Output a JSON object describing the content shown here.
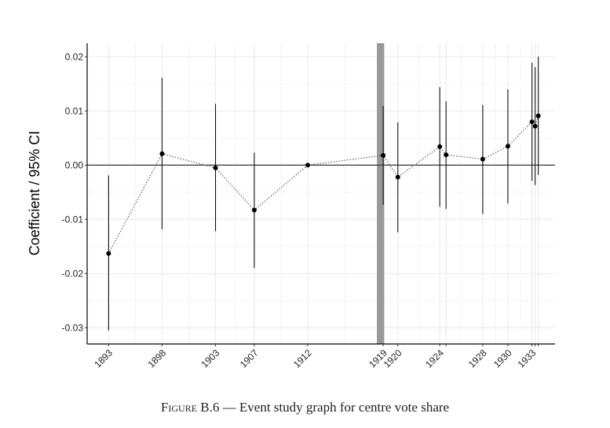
{
  "caption": {
    "label": "Figure B.6",
    "dash": " — ",
    "text": "Event study graph for centre vote share"
  },
  "chart_data": {
    "type": "scatter",
    "title": "",
    "xlabel": "",
    "ylabel": "Coefficient / 95% CI",
    "xlim": [
      1890.95,
      1935.6
    ],
    "ylim": [
      -0.033,
      0.0225
    ],
    "grid": true,
    "yticks": [
      -0.03,
      -0.02,
      -0.01,
      0.0,
      0.01,
      0.02
    ],
    "ytick_labels": [
      "-0.03",
      "-0.02",
      "-0.01",
      "0.00",
      "0.01",
      "0.02"
    ],
    "xticks": [
      {
        "x": 1893.0,
        "label": "1893"
      },
      {
        "x": 1898.1,
        "label": "1898"
      },
      {
        "x": 1903.2,
        "label": "1903"
      },
      {
        "x": 1906.9,
        "label": "1907"
      },
      {
        "x": 1912.0,
        "label": "1912"
      },
      {
        "x": 1919.2,
        "label": "1919"
      },
      {
        "x": 1920.6,
        "label": "1920"
      },
      {
        "x": 1924.6,
        "label": "1924"
      },
      {
        "x": 1928.7,
        "label": "1928"
      },
      {
        "x": 1931.1,
        "label": "1930"
      },
      {
        "x": 1933.4,
        "label": "1933"
      }
    ],
    "shaded_band": {
      "x0": 1918.6,
      "x1": 1919.3,
      "color": "#999999"
    },
    "reference_line_y": 0,
    "points": [
      {
        "x": 1893.0,
        "y": -0.0163,
        "lo": -0.0305,
        "hi": -0.0019
      },
      {
        "x": 1898.1,
        "y": 0.0021,
        "lo": -0.0118,
        "hi": 0.0161
      },
      {
        "x": 1903.2,
        "y": -0.0005,
        "lo": -0.0122,
        "hi": 0.0113
      },
      {
        "x": 1906.9,
        "y": -0.0083,
        "lo": -0.019,
        "hi": 0.0023
      },
      {
        "x": 1912.0,
        "y": 0.0,
        "lo": null,
        "hi": null
      },
      {
        "x": 1919.2,
        "y": 0.0018,
        "lo": -0.0073,
        "hi": 0.0109
      },
      {
        "x": 1920.6,
        "y": -0.0022,
        "lo": -0.0124,
        "hi": 0.0079
      },
      {
        "x": 1924.6,
        "y": 0.0034,
        "lo": -0.0077,
        "hi": 0.0144
      },
      {
        "x": 1925.2,
        "y": 0.0019,
        "lo": -0.0081,
        "hi": 0.0118
      },
      {
        "x": 1928.7,
        "y": 0.0011,
        "lo": -0.009,
        "hi": 0.0111
      },
      {
        "x": 1931.1,
        "y": 0.0035,
        "lo": -0.0071,
        "hi": 0.014
      },
      {
        "x": 1933.4,
        "y": 0.008,
        "lo": -0.0029,
        "hi": 0.0189
      },
      {
        "x": 1933.7,
        "y": 0.0072,
        "lo": -0.0037,
        "hi": 0.0181
      },
      {
        "x": 1934.0,
        "y": 0.0091,
        "lo": -0.0018,
        "hi": 0.02
      }
    ]
  }
}
